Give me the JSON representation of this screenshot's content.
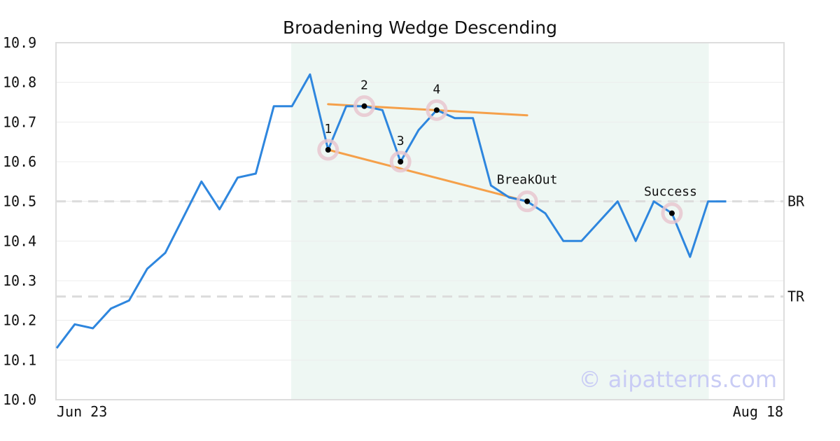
{
  "chart_data": {
    "type": "line",
    "title": "Broadening Wedge Descending",
    "x_tick_labels": [
      "Jun 23",
      "Aug 18"
    ],
    "ylim": [
      10.0,
      10.9
    ],
    "y_ticks": [
      "10.0",
      "10.1",
      "10.2",
      "10.3",
      "10.4",
      "10.5",
      "10.6",
      "10.7",
      "10.8",
      "10.9"
    ],
    "grid": true,
    "series": [
      {
        "color": "#2e86de",
        "values": [
          10.13,
          10.19,
          10.18,
          10.23,
          10.25,
          10.33,
          10.37,
          10.46,
          10.55,
          10.48,
          10.56,
          10.57,
          10.74,
          10.74,
          10.82,
          10.63,
          10.74,
          10.74,
          10.73,
          10.6,
          10.68,
          10.73,
          10.71,
          10.71,
          10.54,
          10.51,
          10.5,
          10.47,
          10.4,
          10.4,
          10.45,
          10.5,
          10.4,
          10.5,
          10.47,
          10.36,
          10.5,
          10.5
        ]
      }
    ],
    "pattern_region": {
      "start_index": 13,
      "end_index": 36,
      "color": "#eef7f3"
    },
    "trendlines": [
      {
        "color": "#f5a04a",
        "from": [
          15,
          10.745
        ],
        "to": [
          26,
          10.717
        ]
      },
      {
        "color": "#f5a04a",
        "from": [
          15,
          10.63
        ],
        "to": [
          26,
          10.5
        ]
      }
    ],
    "points": [
      {
        "label": "1",
        "index": 15,
        "value": 10.63
      },
      {
        "label": "2",
        "index": 17,
        "value": 10.74
      },
      {
        "label": "3",
        "index": 19,
        "value": 10.6
      },
      {
        "label": "4",
        "index": 21,
        "value": 10.73
      },
      {
        "label": "BreakOut",
        "index": 26,
        "value": 10.5
      },
      {
        "label": "Success",
        "index": 34,
        "value": 10.47
      }
    ],
    "levels": [
      {
        "label": "BR",
        "value": 10.5
      },
      {
        "label": "TR",
        "value": 10.26
      }
    ]
  },
  "watermark": "© aipatterns.com"
}
